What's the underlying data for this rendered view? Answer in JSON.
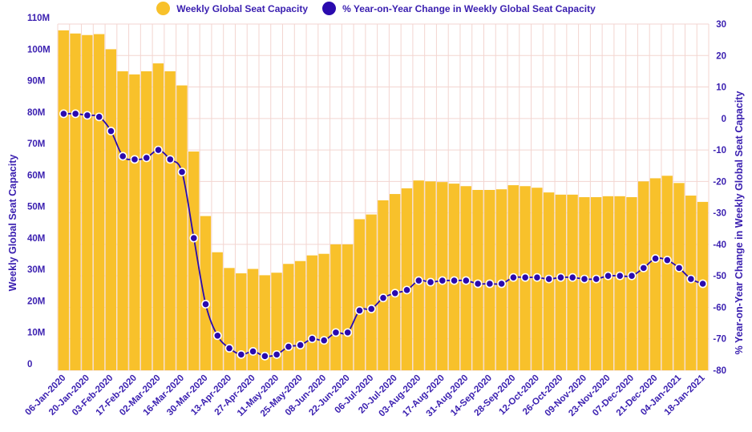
{
  "colors": {
    "bar": "#F8C12B",
    "line": "#2A0AAE",
    "grid": "#F3D5D0",
    "text": "#3A1FB0"
  },
  "legend": {
    "bar_label": "Weekly Global Seat Capacity",
    "line_label": "% Year-on-Year Change in Weekly Global Seat Capacity"
  },
  "chart_data": {
    "type": "bar+line",
    "y_left": {
      "label": "Weekly Global Seat Capacity",
      "range": [
        0,
        110
      ],
      "ticks": [
        0,
        10,
        20,
        30,
        40,
        50,
        60,
        70,
        80,
        90,
        100,
        110
      ],
      "tick_labels": [
        "0",
        "10M",
        "20M",
        "30M",
        "40M",
        "50M",
        "60M",
        "70M",
        "80M",
        "90M",
        "100M",
        "110M"
      ]
    },
    "y_right": {
      "label": "% Year-on-Year Change in Weekly Global Seat Capacity",
      "range": [
        -80,
        30
      ],
      "ticks": [
        30,
        20,
        10,
        0,
        -10,
        -20,
        -30,
        -40,
        -50,
        -60,
        -70,
        -80
      ]
    },
    "x_tick_labels": [
      "06-Jan-2020",
      "20-Jan-2020",
      "03-Feb-2020",
      "17-Feb-2020",
      "02-Mar-2020",
      "16-Mar-2020",
      "30-Mar-2020",
      "13-Apr-2020",
      "27-Apr-2020",
      "11-May-2020",
      "25-May-2020",
      "08-Jun-2020",
      "22-Jun-2020",
      "06-Jul-2020",
      "20-Jul-2020",
      "03-Aug-2020",
      "17-Aug-2020",
      "31-Aug-2020",
      "14-Sep-2020",
      "28-Sep-2020",
      "12-Oct-2020",
      "26-Oct-2020",
      "09-Nov-2020",
      "23-Nov-2020",
      "07-Dec-2020",
      "21-Dec-2020",
      "04-Jan-2021",
      "18-Jan-2021"
    ],
    "series": [
      {
        "name": "Weekly Global Seat Capacity",
        "type": "bar",
        "axis": "left",
        "unit": "M",
        "values": [
          108,
          107,
          106.5,
          106.8,
          102,
          95,
          94,
          95,
          97.5,
          95,
          90.5,
          69.5,
          49,
          37.5,
          32.5,
          30.8,
          32.2,
          30.2,
          31,
          33.8,
          34.7,
          36.5,
          37,
          40,
          40,
          48,
          49.5,
          54,
          56,
          57.8,
          60.3,
          60,
          59.8,
          59.3,
          58.5,
          57.3,
          57.3,
          57.5,
          58.8,
          58.5,
          58,
          56.5,
          55.8,
          55.8,
          55,
          55,
          55.3,
          55.3,
          55,
          60,
          61,
          61.8,
          59.5,
          55.5,
          53.5
        ]
      },
      {
        "name": "% Year-on-Year Change in Weekly Global Seat Capacity",
        "type": "line",
        "axis": "right",
        "values": [
          1.5,
          1.5,
          1,
          0.5,
          -4,
          -12,
          -13,
          -12.5,
          -10,
          -13,
          -17,
          -38,
          -59,
          -69,
          -73,
          -75,
          -74,
          -75.5,
          -75,
          -72.5,
          -72,
          -70,
          -70.5,
          -68,
          -68,
          -61,
          -60.5,
          -57,
          -55.5,
          -54.5,
          -51.5,
          -52,
          -51.5,
          -51.5,
          -51.5,
          -52.5,
          -52.5,
          -52.5,
          -50.5,
          -50.5,
          -50.5,
          -51,
          -50.5,
          -50.5,
          -51,
          -51,
          -50,
          -50,
          -50,
          -47.5,
          -44.5,
          -45,
          -47.5,
          -51,
          -52.5
        ]
      }
    ]
  }
}
